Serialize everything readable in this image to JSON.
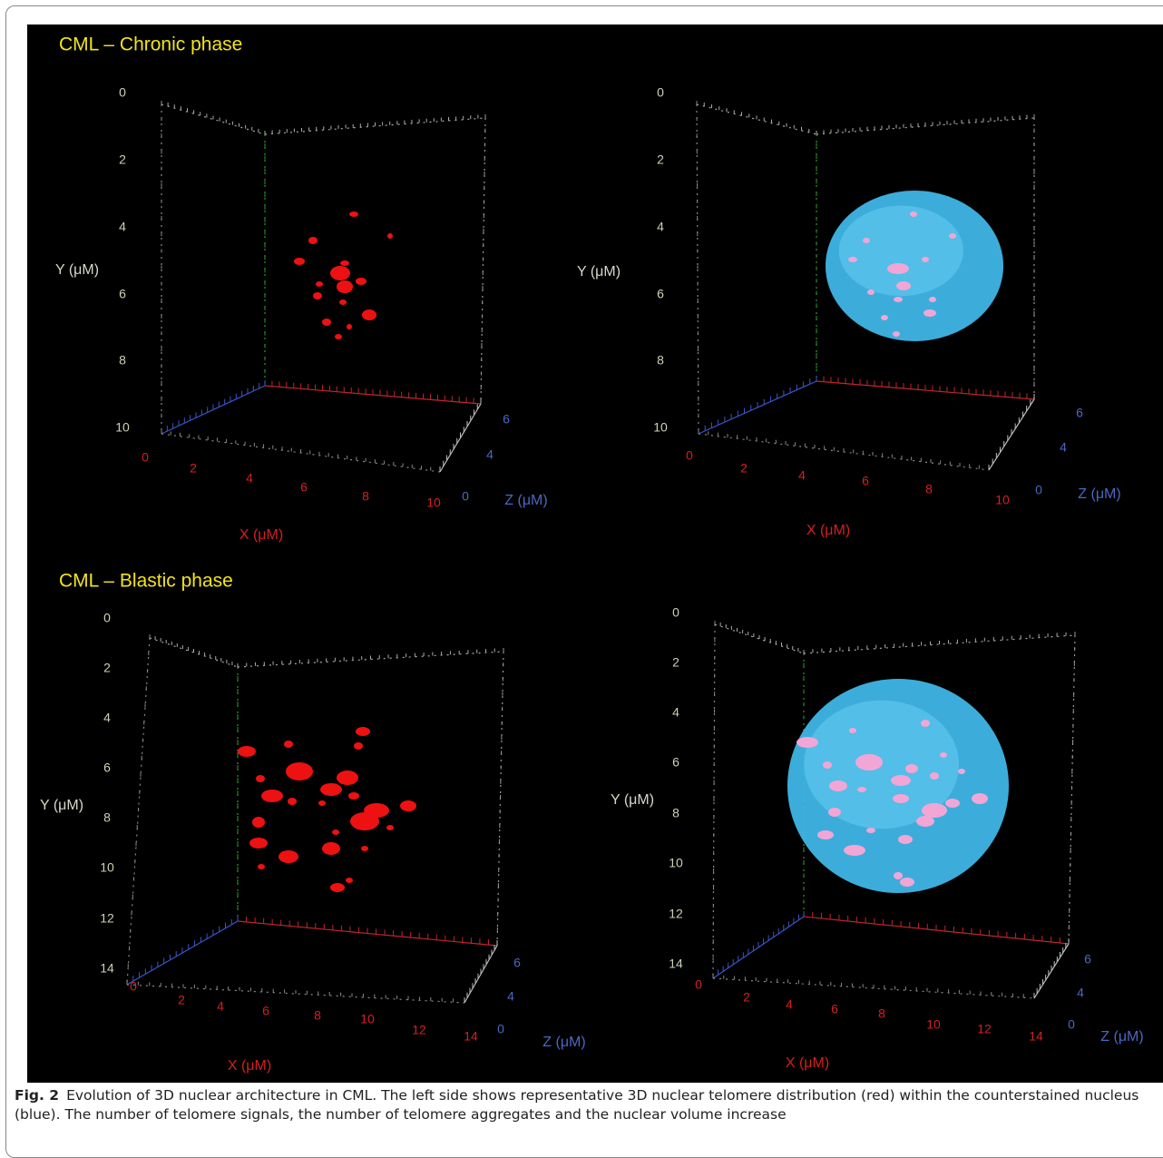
{
  "figure": {
    "panels": [
      {
        "title": "CML – Chronic phase",
        "y_label": "Y (μM)",
        "x_label": "X (μM)",
        "z_label": "Z (μM)",
        "y_ticks": [
          0,
          2,
          4,
          6,
          8,
          10
        ],
        "x_ticks": [
          0,
          2,
          4,
          6,
          8,
          10
        ],
        "z_ticks": [
          0,
          4,
          6
        ]
      },
      {
        "y_label": "Y (μM)",
        "x_label": "X (μM)",
        "z_label": "Z (μM)",
        "y_ticks": [
          0,
          2,
          4,
          6,
          8,
          10
        ],
        "x_ticks": [
          0,
          2,
          4,
          6,
          8,
          10
        ],
        "z_ticks": [
          0,
          4,
          6
        ]
      },
      {
        "title": "CML – Blastic phase",
        "y_label": "Y (μM)",
        "x_label": "X (μM)",
        "z_label": "Z (μM)",
        "y_ticks": [
          0,
          2,
          4,
          6,
          8,
          10,
          12,
          14
        ],
        "x_ticks": [
          0,
          2,
          4,
          6,
          8,
          10,
          12,
          14
        ],
        "z_ticks": [
          0,
          4,
          6
        ]
      },
      {
        "y_label": "Y (μM)",
        "x_label": "X (μM)",
        "z_label": "Z (μM)",
        "y_ticks": [
          0,
          2,
          4,
          6,
          8,
          10,
          12,
          14
        ],
        "x_ticks": [
          0,
          2,
          4,
          6,
          8,
          10,
          12,
          14
        ],
        "z_ticks": [
          0,
          4,
          6
        ]
      }
    ],
    "caption": {
      "label": "Fig. 2",
      "text": "Evolution of 3D nuclear architecture in CML. The left side shows representative 3D nuclear telomere distribution (red) within the counterstained nucleus (blue). The number of telomere signals, the number of telomere aggregates and the nuclear volume increase"
    }
  }
}
